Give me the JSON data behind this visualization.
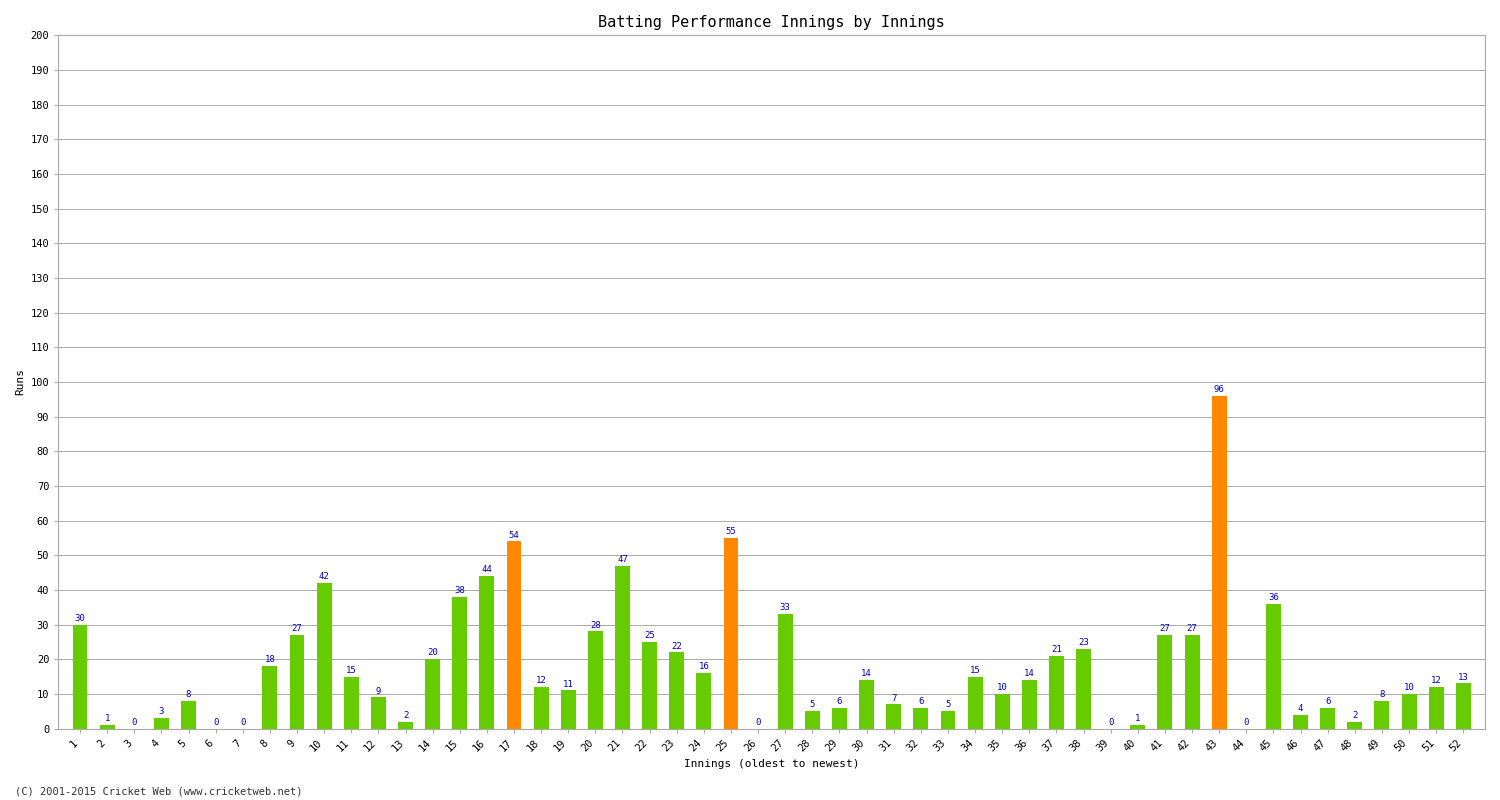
{
  "title": "Batting Performance Innings by Innings",
  "xlabel": "Innings (oldest to newest)",
  "ylabel": "Runs",
  "innings": [
    1,
    2,
    3,
    4,
    5,
    6,
    7,
    8,
    9,
    10,
    11,
    12,
    13,
    14,
    15,
    16,
    17,
    18,
    19,
    20,
    21,
    22,
    23,
    24,
    25,
    26,
    27,
    28,
    29,
    30,
    31,
    32,
    33,
    34,
    35,
    36,
    37,
    38,
    39,
    40,
    41,
    42,
    43,
    44,
    45,
    46,
    47,
    48,
    49,
    50,
    51,
    52
  ],
  "values": [
    30,
    1,
    0,
    3,
    8,
    0,
    0,
    18,
    27,
    42,
    15,
    9,
    2,
    20,
    38,
    44,
    54,
    12,
    11,
    28,
    47,
    25,
    22,
    16,
    55,
    0,
    33,
    5,
    6,
    14,
    7,
    6,
    5,
    15,
    10,
    14,
    21,
    23,
    0,
    1,
    27,
    27,
    96,
    0,
    36,
    4,
    6,
    2,
    8,
    10,
    12,
    13
  ],
  "colors": [
    "#66cc00",
    "#66cc00",
    "#66cc00",
    "#66cc00",
    "#66cc00",
    "#66cc00",
    "#66cc00",
    "#66cc00",
    "#66cc00",
    "#66cc00",
    "#66cc00",
    "#66cc00",
    "#66cc00",
    "#66cc00",
    "#66cc00",
    "#66cc00",
    "#ff8800",
    "#66cc00",
    "#66cc00",
    "#66cc00",
    "#66cc00",
    "#66cc00",
    "#66cc00",
    "#66cc00",
    "#ff8800",
    "#66cc00",
    "#66cc00",
    "#66cc00",
    "#66cc00",
    "#66cc00",
    "#66cc00",
    "#66cc00",
    "#66cc00",
    "#66cc00",
    "#66cc00",
    "#66cc00",
    "#66cc00",
    "#66cc00",
    "#66cc00",
    "#66cc00",
    "#66cc00",
    "#66cc00",
    "#ff8800",
    "#66cc00",
    "#66cc00",
    "#66cc00",
    "#66cc00",
    "#66cc00",
    "#66cc00",
    "#66cc00",
    "#66cc00",
    "#66cc00"
  ],
  "ylim": [
    0,
    200
  ],
  "yticks": [
    0,
    10,
    20,
    30,
    40,
    50,
    60,
    70,
    80,
    90,
    100,
    110,
    120,
    130,
    140,
    150,
    160,
    170,
    180,
    190,
    200
  ],
  "bg_color": "#ffffff",
  "grid_color": "#aaaaaa",
  "label_color": "#0000cc",
  "label_fontsize": 6.5,
  "title_fontsize": 11,
  "axis_label_fontsize": 8,
  "tick_fontsize": 7.5,
  "footer": "(C) 2001-2015 Cricket Web (www.cricketweb.net)"
}
